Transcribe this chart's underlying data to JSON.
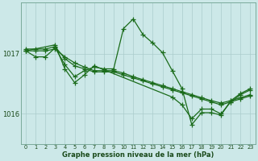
{
  "background_color": "#cce8e8",
  "grid_color": "#aacccc",
  "line_color": "#1a6b1a",
  "xlabel_label": "Graphe pression niveau de la mer (hPa)",
  "ylim": [
    1015.5,
    1017.85
  ],
  "yticks": [
    1016.0,
    1017.0
  ],
  "ytick_labels": [
    "1016",
    "1017"
  ],
  "xticks": [
    0,
    1,
    2,
    3,
    4,
    5,
    6,
    7,
    8,
    9,
    10,
    11,
    12,
    13,
    14,
    15,
    16,
    17,
    18,
    19,
    20,
    21,
    22,
    23
  ],
  "figsize": [
    3.2,
    2.0
  ],
  "dpi": 100,
  "series": [
    {
      "x": [
        0,
        1,
        2,
        3,
        4,
        5,
        6,
        7,
        8,
        9,
        10,
        11,
        12,
        13,
        14,
        15,
        16,
        17,
        18,
        19,
        20,
        21,
        22,
        23
      ],
      "y": [
        1017.05,
        1016.95,
        1016.95,
        1017.1,
        1016.82,
        1016.62,
        1016.72,
        1016.78,
        1016.75,
        1016.75,
        1017.42,
        1017.58,
        1017.32,
        1017.18,
        1017.02,
        1016.72,
        1016.42,
        1015.82,
        1016.02,
        1016.02,
        1015.98,
        1016.22,
        1016.34,
        1016.42
      ]
    },
    {
      "x": [
        0,
        1,
        2,
        3,
        4,
        5,
        6,
        7,
        8,
        9,
        10,
        11,
        12,
        13,
        14,
        15,
        16,
        17,
        18,
        19,
        20,
        21,
        22,
        23
      ],
      "y": [
        1017.05,
        1017.05,
        1017.05,
        1017.08,
        1016.95,
        1016.85,
        1016.78,
        1016.72,
        1016.72,
        1016.72,
        1016.68,
        1016.62,
        1016.57,
        1016.52,
        1016.47,
        1016.42,
        1016.37,
        1016.32,
        1016.27,
        1016.22,
        1016.18,
        1016.22,
        1016.27,
        1016.32
      ]
    },
    {
      "x": [
        0,
        1,
        2,
        3,
        4,
        5,
        6,
        7,
        8,
        9,
        10,
        11,
        12,
        13,
        14,
        15,
        16,
        17,
        18,
        19,
        20,
        21,
        22,
        23
      ],
      "y": [
        1017.08,
        1017.08,
        1017.08,
        1017.12,
        1016.92,
        1016.8,
        1016.75,
        1016.7,
        1016.7,
        1016.7,
        1016.65,
        1016.6,
        1016.55,
        1016.5,
        1016.45,
        1016.4,
        1016.35,
        1016.3,
        1016.25,
        1016.2,
        1016.15,
        1016.2,
        1016.25,
        1016.3
      ]
    },
    {
      "x": [
        0,
        3,
        4,
        5,
        6,
        7,
        15,
        16,
        17,
        18,
        19,
        20,
        21,
        22,
        23
      ],
      "y": [
        1017.05,
        1017.15,
        1016.75,
        1016.52,
        1016.65,
        1016.8,
        1016.28,
        1016.15,
        1015.92,
        1016.08,
        1016.08,
        1016.0,
        1016.2,
        1016.32,
        1016.4
      ]
    }
  ]
}
